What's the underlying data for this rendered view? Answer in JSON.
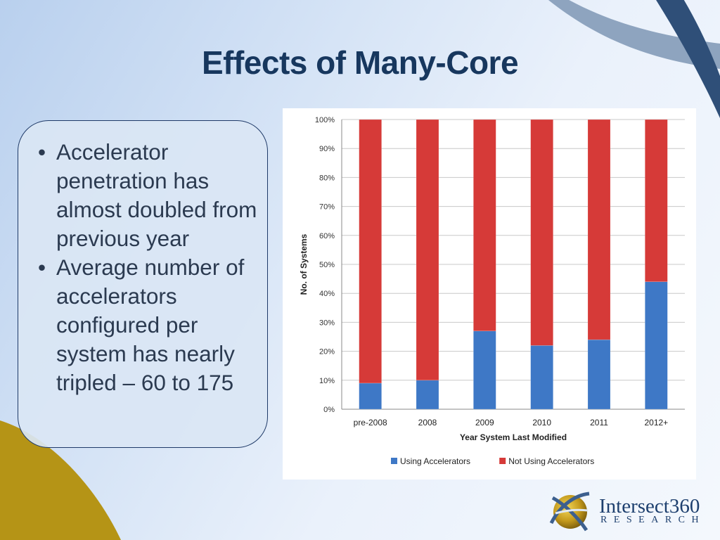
{
  "slide": {
    "title": "Effects of Many-Core",
    "bullets": [
      "Accelerator penetration has almost doubled from previous year",
      "Average number of accelerators configured per system has nearly tripled – 60 to 175"
    ]
  },
  "logo": {
    "name": "Intersect360",
    "subtitle": "RESEARCH"
  },
  "chart_data": {
    "type": "bar",
    "stacked": true,
    "categories": [
      "pre-2008",
      "2008",
      "2009",
      "2010",
      "2011",
      "2012+"
    ],
    "series": [
      {
        "name": "Using Accelerators",
        "values": [
          9,
          10,
          27,
          22,
          24,
          44
        ],
        "color": "#3e78c6"
      },
      {
        "name": "Not Using Accelerators",
        "values": [
          91,
          90,
          73,
          78,
          76,
          56
        ],
        "color": "#d63a38"
      }
    ],
    "xlabel": "Year System Last Modified",
    "ylabel": "No. of Systems",
    "ylim": [
      0,
      100
    ],
    "yticks": [
      "0%",
      "10%",
      "20%",
      "30%",
      "40%",
      "50%",
      "60%",
      "70%",
      "80%",
      "90%",
      "100%"
    ],
    "grid": true,
    "legend": "bottom"
  }
}
